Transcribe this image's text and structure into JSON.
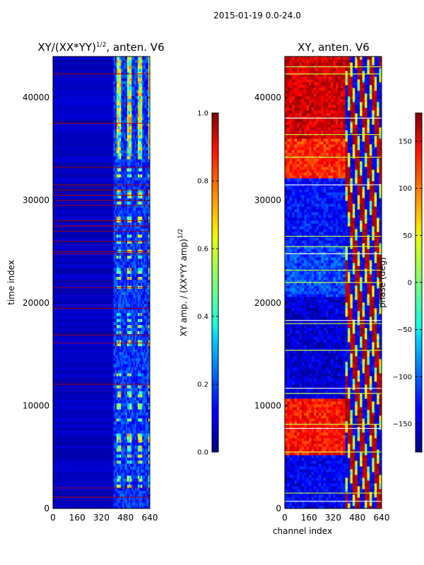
{
  "figure_title": "2015-01-19 0.0-24.0",
  "chart_data": [
    {
      "type": "heatmap",
      "title": "XY/(XX*YY)",
      "title_sup": "1/2",
      "title_suffix": ", anten. V6",
      "xlabel": "",
      "ylabel": "time index",
      "xlim": [
        0,
        640
      ],
      "ylim": [
        0,
        44000
      ],
      "xticks": [
        0,
        160,
        320,
        480,
        640
      ],
      "yticks": [
        0,
        10000,
        20000,
        30000,
        40000
      ],
      "channel_band_start": 400,
      "colorbar": {
        "label_main": "XY amp. / (XX*YY amp)",
        "label_sup": "1/2",
        "range": [
          0.0,
          1.0
        ],
        "ticks": [
          "0.0",
          "0.2",
          "0.4",
          "0.6",
          "0.8",
          "1.0"
        ],
        "tick_values": [
          0.0,
          0.2,
          0.4,
          0.6,
          0.8,
          1.0
        ]
      },
      "flagged_rows": [
        1100,
        2000,
        12100,
        16100,
        16900,
        19500,
        21500,
        24800,
        25000,
        26000,
        27000,
        27500,
        28000,
        29500,
        30000,
        30500,
        31000,
        31500,
        33200,
        37500,
        42300
      ]
    },
    {
      "type": "heatmap",
      "title": "XY, anten. V6",
      "xlabel": "channel index",
      "ylabel": "",
      "xlim": [
        0,
        640
      ],
      "ylim": [
        0,
        44000
      ],
      "xticks": [
        0,
        160,
        320,
        480,
        640
      ],
      "yticks": [
        0,
        10000,
        20000,
        30000,
        40000
      ],
      "channel_band_start": 400,
      "colorbar": {
        "label_main": "phase (deg)",
        "range": [
          -180,
          180
        ],
        "ticks": [
          "−150",
          "−100",
          "−50",
          "0",
          "50",
          "100",
          "150"
        ],
        "tick_values": [
          -150,
          -100,
          -50,
          0,
          50,
          100,
          150
        ]
      },
      "phase_regions": [
        {
          "from": 0,
          "to": 5000,
          "phase": -140
        },
        {
          "from": 5000,
          "to": 10500,
          "phase": 130
        },
        {
          "from": 10500,
          "to": 20500,
          "phase": -150
        },
        {
          "from": 20500,
          "to": 25500,
          "phase": -110
        },
        {
          "from": 25500,
          "to": 32000,
          "phase": -130
        },
        {
          "from": 32000,
          "to": 36000,
          "phase": 120
        },
        {
          "from": 36000,
          "to": 44000,
          "phase": 150
        }
      ],
      "flagged_rows": [
        700,
        1500,
        5500,
        7800,
        8200,
        11200,
        11700,
        15400,
        18000,
        18300,
        22000,
        23200,
        24800,
        25500,
        26500,
        31500,
        34200,
        36400,
        38000,
        42300,
        43000
      ]
    }
  ]
}
